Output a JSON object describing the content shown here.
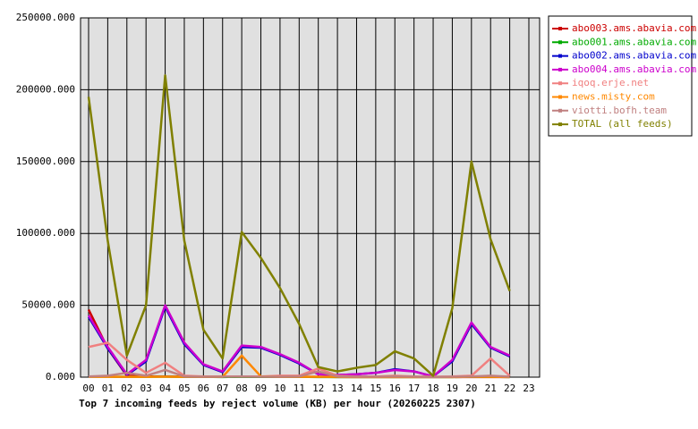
{
  "chart_data": {
    "type": "line",
    "title": "Top 7 incoming feeds by reject volume (KB) per hour (20260225 2307)",
    "categories": [
      "00",
      "01",
      "02",
      "03",
      "04",
      "05",
      "06",
      "07",
      "08",
      "09",
      "10",
      "11",
      "12",
      "13",
      "14",
      "15",
      "16",
      "17",
      "18",
      "19",
      "20",
      "21",
      "22",
      "23"
    ],
    "ylim": [
      0,
      250000
    ],
    "yticks": [
      {
        "value": 0,
        "label": "0.000"
      },
      {
        "value": 50000,
        "label": "50000.000"
      },
      {
        "value": 100000,
        "label": "100000.000"
      },
      {
        "value": 150000,
        "label": "150000.000"
      },
      {
        "value": 200000,
        "label": "200000.000"
      },
      {
        "value": 250000,
        "label": "250000.000"
      }
    ],
    "grid": true,
    "legend": "top-right",
    "series": [
      {
        "name": "abo003.ams.abavia.com",
        "color": "#cc0000",
        "values": [
          47000,
          20000,
          1000,
          500,
          500,
          300,
          200,
          200,
          300,
          200,
          200,
          200,
          200,
          100,
          100,
          100,
          100,
          100,
          100,
          100,
          100,
          100,
          100,
          null
        ]
      },
      {
        "name": "abo001.ams.abavia.com",
        "color": "#00aa00",
        "values": [
          300,
          300,
          200,
          200,
          300,
          200,
          200,
          100,
          200,
          200,
          200,
          200,
          100,
          100,
          100,
          100,
          100,
          100,
          100,
          100,
          200,
          200,
          100,
          null
        ]
      },
      {
        "name": "abo002.ams.abavia.com",
        "color": "#0000cc",
        "values": [
          42000,
          20000,
          1500,
          11000,
          49000,
          23000,
          8500,
          3500,
          21000,
          20500,
          15500,
          9500,
          2000,
          1500,
          2000,
          3000,
          5500,
          4000,
          500,
          11000,
          37000,
          20500,
          14500,
          null
        ]
      },
      {
        "name": "abo004.ams.abavia.com",
        "color": "#cc00cc",
        "values": [
          43000,
          21000,
          2000,
          12000,
          50000,
          24000,
          9000,
          4000,
          22000,
          21000,
          16000,
          10000,
          2000,
          1500,
          2000,
          3000,
          5000,
          4000,
          500,
          12000,
          38000,
          21000,
          15000,
          null
        ]
      },
      {
        "name": "iqoq.erje.net",
        "color": "#f08080",
        "values": [
          21000,
          24000,
          12000,
          3000,
          10000,
          1000,
          500,
          500,
          500,
          500,
          1000,
          1000,
          6000,
          1000,
          500,
          500,
          1000,
          500,
          300,
          500,
          1000,
          13000,
          1000,
          null
        ]
      },
      {
        "name": "news.misty.com",
        "color": "#ff8800",
        "values": [
          200,
          200,
          200,
          200,
          300,
          200,
          200,
          200,
          15000,
          500,
          200,
          200,
          200,
          200,
          100,
          100,
          100,
          100,
          100,
          100,
          200,
          200,
          100,
          null
        ]
      },
      {
        "name": "viotti.bofh.team",
        "color": "#c08080",
        "values": [
          500,
          1000,
          3000,
          1000,
          5000,
          500,
          300,
          300,
          500,
          300,
          300,
          500,
          4000,
          500,
          300,
          300,
          500,
          300,
          100,
          300,
          500,
          1000,
          300,
          null
        ]
      },
      {
        "name": "TOTAL (all feeds)",
        "color": "#808000",
        "values": [
          195000,
          95000,
          15000,
          50000,
          210000,
          95000,
          33000,
          13000,
          101000,
          83000,
          62000,
          37000,
          7000,
          4000,
          6500,
          8500,
          18000,
          13000,
          1000,
          48000,
          150000,
          96000,
          60000,
          null
        ]
      }
    ]
  }
}
